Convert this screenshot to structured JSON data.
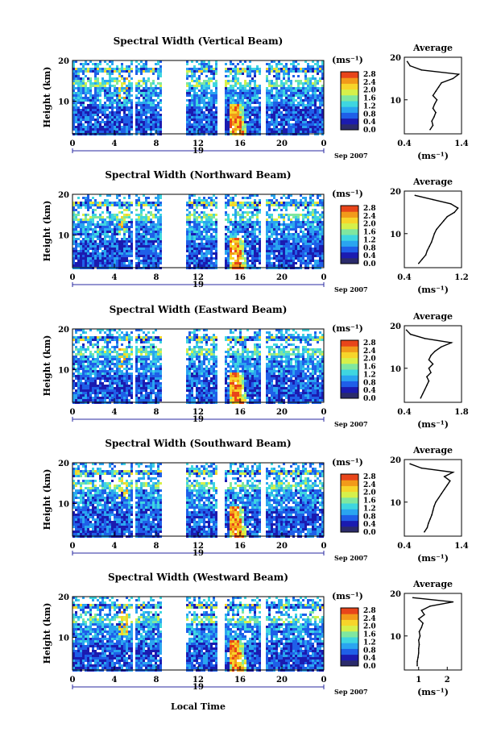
{
  "figure": {
    "xlabel": "Local Time",
    "colorbar": {
      "unit": "(ms⁻¹)",
      "ticks": [
        "2.8",
        "2.4",
        "2.0",
        "1.6",
        "1.2",
        "0.8",
        "0.4",
        "0.0"
      ],
      "min": 0,
      "max": 2.8,
      "colors": [
        "#2b2b6b",
        "#1b1bb0",
        "#1f5fe8",
        "#2aa5f0",
        "#3fd6e0",
        "#7fe7a0",
        "#d6f04a",
        "#f7d52a",
        "#f29a1a",
        "#e8451a"
      ]
    }
  },
  "chart_data": [
    {
      "type": "heatmap",
      "title": "Spectral Width (Vertical Beam)",
      "ylabel": "Height (km)",
      "y_ticks": [
        "20",
        "10"
      ],
      "x_ticks": [
        "0",
        "4",
        "8",
        "12",
        "16",
        "20",
        "0"
      ],
      "date_label": "19",
      "date_suffix": "Sep 2007",
      "x_range": [
        0,
        24
      ],
      "y_range": [
        2,
        20
      ],
      "data_gaps_hours": [
        [
          5.6,
          6.0
        ],
        [
          8.5,
          10.7
        ],
        [
          13.8,
          14.4
        ],
        [
          17.8,
          18.3
        ]
      ],
      "profile": {
        "title": "Average",
        "xlabel": "(ms⁻¹)",
        "x_ticks": [
          "0.4",
          "1.4"
        ],
        "x_range": [
          0.4,
          1.4
        ],
        "heights": [
          3,
          4,
          5,
          6,
          7,
          8,
          9,
          10,
          11,
          12,
          13,
          14,
          15,
          16,
          17,
          18,
          19
        ],
        "values": [
          0.85,
          0.9,
          0.88,
          0.92,
          0.95,
          0.9,
          0.93,
          0.97,
          0.9,
          0.95,
          1.0,
          1.05,
          1.25,
          1.35,
          0.7,
          0.5,
          0.45
        ]
      }
    },
    {
      "type": "heatmap",
      "title": "Spectral Width (Northward Beam)",
      "ylabel": "Height (km)",
      "y_ticks": [
        "20",
        "10"
      ],
      "x_ticks": [
        "0",
        "4",
        "8",
        "12",
        "16",
        "20",
        "0"
      ],
      "date_label": "19",
      "date_suffix": "Sep 2007",
      "x_range": [
        0,
        24
      ],
      "y_range": [
        2,
        20
      ],
      "data_gaps_hours": [
        [
          5.6,
          6.0
        ],
        [
          8.5,
          10.7
        ],
        [
          13.8,
          14.4
        ],
        [
          17.8,
          18.3
        ]
      ],
      "profile": {
        "title": "Average",
        "xlabel": "(ms⁻¹)",
        "x_ticks": [
          "0.4",
          "1.2"
        ],
        "x_range": [
          0.4,
          1.2
        ],
        "heights": [
          3,
          4,
          5,
          6,
          7,
          8,
          9,
          10,
          11,
          12,
          13,
          14,
          15,
          16,
          17,
          18,
          19
        ],
        "values": [
          0.6,
          0.65,
          0.7,
          0.72,
          0.75,
          0.78,
          0.8,
          0.82,
          0.85,
          0.9,
          0.95,
          1.0,
          1.1,
          1.15,
          1.05,
          0.8,
          0.55
        ]
      }
    },
    {
      "type": "heatmap",
      "title": "Spectral Width (Eastward Beam)",
      "ylabel": "Height (km)",
      "y_ticks": [
        "20",
        "10"
      ],
      "x_ticks": [
        "0",
        "4",
        "8",
        "12",
        "16",
        "20",
        "0"
      ],
      "date_label": "19",
      "date_suffix": "Sep 2007",
      "x_range": [
        0,
        24
      ],
      "y_range": [
        2,
        20
      ],
      "data_gaps_hours": [
        [
          5.6,
          6.0
        ],
        [
          8.5,
          10.7
        ],
        [
          13.8,
          14.4
        ],
        [
          17.8,
          18.3
        ]
      ],
      "profile": {
        "title": "Average",
        "xlabel": "(ms⁻¹)",
        "x_ticks": [
          "0.4",
          "1.8"
        ],
        "x_range": [
          0.4,
          1.8
        ],
        "heights": [
          3,
          4,
          5,
          6,
          7,
          8,
          9,
          10,
          11,
          12,
          13,
          14,
          15,
          16,
          17,
          18,
          19
        ],
        "values": [
          0.8,
          0.85,
          0.9,
          0.95,
          1.0,
          0.95,
          1.05,
          1.0,
          1.1,
          1.0,
          1.05,
          1.15,
          1.3,
          1.55,
          0.9,
          0.55,
          0.45
        ]
      }
    },
    {
      "type": "heatmap",
      "title": "Spectral Width (Southward Beam)",
      "ylabel": "Height (km)",
      "y_ticks": [
        "20",
        "10"
      ],
      "x_ticks": [
        "0",
        "4",
        "8",
        "12",
        "16",
        "20",
        "0"
      ],
      "date_label": "19",
      "date_suffix": "Sep 2007",
      "x_range": [
        0,
        24
      ],
      "y_range": [
        2,
        20
      ],
      "data_gaps_hours": [
        [
          5.6,
          6.0
        ],
        [
          8.5,
          10.7
        ],
        [
          13.8,
          14.4
        ],
        [
          17.8,
          18.3
        ]
      ],
      "profile": {
        "title": "Average",
        "xlabel": "(ms⁻¹)",
        "x_ticks": [
          "0.4",
          "1.4"
        ],
        "x_range": [
          0.4,
          1.4
        ],
        "heights": [
          3,
          4,
          5,
          6,
          7,
          8,
          9,
          10,
          11,
          12,
          13,
          14,
          15,
          16,
          17,
          18,
          19
        ],
        "values": [
          0.75,
          0.8,
          0.82,
          0.85,
          0.88,
          0.9,
          0.92,
          0.95,
          1.0,
          1.05,
          1.1,
          1.15,
          1.2,
          1.1,
          1.25,
          0.7,
          0.5
        ]
      }
    },
    {
      "type": "heatmap",
      "title": "Spectral Width (Westward Beam)",
      "ylabel": "Height (km)",
      "y_ticks": [
        "20",
        "10"
      ],
      "x_ticks": [
        "0",
        "4",
        "8",
        "12",
        "16",
        "20",
        "0"
      ],
      "date_label": "19",
      "date_suffix": "Sep 2007",
      "x_range": [
        0,
        24
      ],
      "y_range": [
        2,
        20
      ],
      "data_gaps_hours": [
        [
          5.6,
          6.0
        ],
        [
          8.5,
          10.7
        ],
        [
          13.8,
          14.4
        ],
        [
          17.8,
          18.3
        ]
      ],
      "profile": {
        "title": "Average",
        "xlabel": "(ms⁻¹)",
        "x_ticks": [
          "1",
          "2"
        ],
        "x_range": [
          0.5,
          2.5
        ],
        "heights": [
          3,
          4,
          5,
          6,
          7,
          8,
          9,
          10,
          11,
          12,
          13,
          14,
          15,
          16,
          17,
          18,
          19
        ],
        "values": [
          0.95,
          0.95,
          0.98,
          1.0,
          1.0,
          1.02,
          1.0,
          1.05,
          1.02,
          1.1,
          1.15,
          1.0,
          1.2,
          1.1,
          1.4,
          2.2,
          0.8
        ]
      }
    }
  ]
}
